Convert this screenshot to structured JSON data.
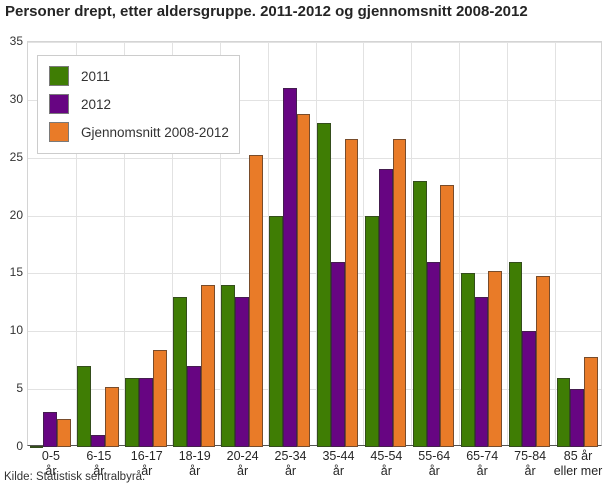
{
  "title": "Personer drept, etter aldersgruppe. 2011-2012 og gjennomsnitt 2008-2012",
  "source": "Kilde: Statistisk sentralbyrå.",
  "colors": {
    "series_2011": "#3f7d04",
    "series_2012": "#670582",
    "series_avg": "#e97b28",
    "grid": "#e2e2e2",
    "plot_border": "#d4d4d4",
    "axis_line": "#545454",
    "text": "#262626"
  },
  "chart_data": {
    "type": "bar",
    "title": "Personer drept, etter aldersgruppe. 2011-2012 og gjennomsnitt 2008-2012",
    "xlabel": "",
    "ylabel": "",
    "ylim": [
      0,
      35
    ],
    "ytick_step": 5,
    "grid": true,
    "legend_position": "top-left",
    "categories": [
      "0-5 år",
      "6-15 år",
      "16-17 år",
      "18-19 år",
      "20-24 år",
      "25-34 år",
      "35-44 år",
      "45-54 år",
      "55-64 år",
      "65-74 år",
      "75-84 år",
      "85 år eller mer"
    ],
    "categories_display": [
      [
        "0-5",
        "år"
      ],
      [
        "6-15",
        "år"
      ],
      [
        "16-17",
        "år"
      ],
      [
        "18-19",
        "år"
      ],
      [
        "20-24",
        "år"
      ],
      [
        "25-34",
        "år"
      ],
      [
        "35-44",
        "år"
      ],
      [
        "45-54",
        "år"
      ],
      [
        "55-64",
        "år"
      ],
      [
        "65-74",
        "år"
      ],
      [
        "75-84",
        "år"
      ],
      [
        "85 år",
        "eller mer"
      ]
    ],
    "series": [
      {
        "name": "2011",
        "color": "#3f7d04",
        "values": [
          0,
          7,
          6,
          13,
          14,
          20,
          28,
          20,
          23,
          15,
          16,
          6
        ]
      },
      {
        "name": "2012",
        "color": "#670582",
        "values": [
          3,
          1,
          6,
          7,
          13,
          31,
          16,
          24,
          16,
          13,
          10,
          5
        ]
      },
      {
        "name": "Gjennomsnitt 2008-2012",
        "color": "#e97b28",
        "values": [
          2.4,
          5.2,
          8.4,
          14,
          25.2,
          28.8,
          26.6,
          26.6,
          22.6,
          15.2,
          14.8,
          7.8
        ]
      }
    ],
    "yticks": [
      0,
      5,
      10,
      15,
      20,
      25,
      30,
      35
    ]
  }
}
